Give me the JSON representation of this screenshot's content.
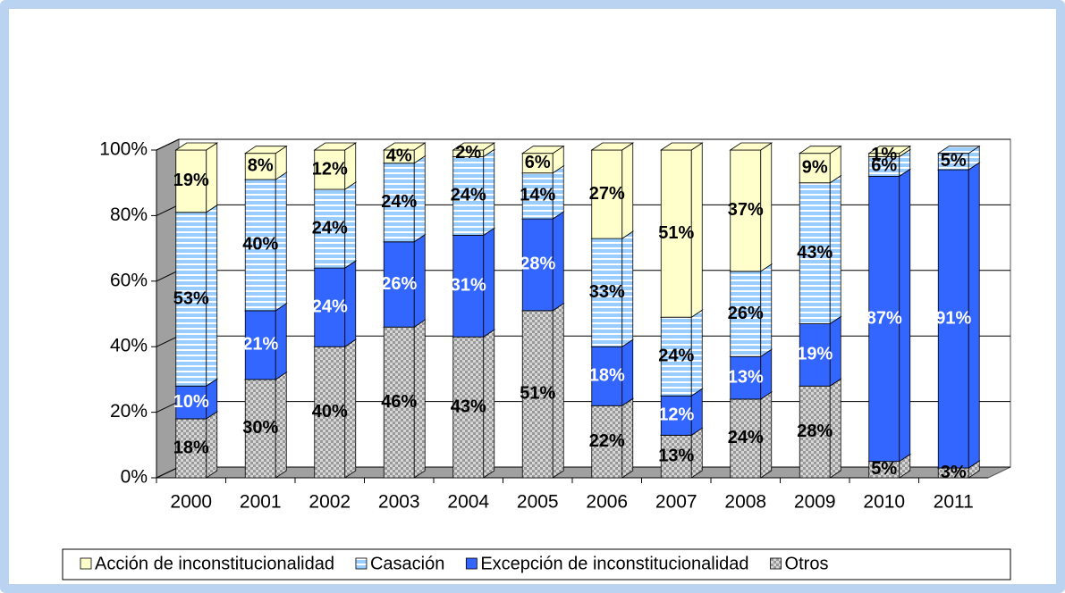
{
  "chart_data": {
    "type": "stacked-bar-3d",
    "categories": [
      "2000",
      "2001",
      "2002",
      "2003",
      "2004",
      "2005",
      "2006",
      "2007",
      "2008",
      "2009",
      "2010",
      "2011"
    ],
    "series": [
      {
        "name": "Acción de inconstitucionalidad",
        "color": "#ffffcc",
        "values": [
          19,
          8,
          12,
          4,
          2,
          6,
          27,
          51,
          37,
          9,
          1,
          null
        ],
        "value_labels": [
          "19%",
          "8%",
          "12%",
          "4%",
          "2%",
          "6%",
          "27%",
          "51%",
          "37%",
          "9%",
          "1%",
          null
        ]
      },
      {
        "name": "Casación",
        "color": "#99ccff",
        "values": [
          53,
          40,
          24,
          24,
          24,
          14,
          33,
          24,
          26,
          43,
          6,
          5
        ],
        "value_labels": [
          "53%",
          "40%",
          "24%",
          "24%",
          "24%",
          "14%",
          "33%",
          "24%",
          "26%",
          "43%",
          "6%",
          "5%"
        ]
      },
      {
        "name": "Excepción de inconstitucionalidad",
        "color": "#3366ff",
        "values": [
          10,
          21,
          24,
          26,
          31,
          28,
          18,
          12,
          13,
          19,
          87,
          91
        ],
        "value_labels": [
          "10%",
          "21%",
          "24%",
          "26%",
          "31%",
          "28%",
          "18%",
          "12%",
          "13%",
          "19%",
          "87%",
          "91%"
        ]
      },
      {
        "name": "Otros",
        "color": "#999999",
        "values": [
          18,
          30,
          40,
          46,
          43,
          51,
          22,
          13,
          24,
          28,
          5,
          3
        ],
        "value_labels": [
          "18%",
          "30%",
          "40%",
          "46%",
          "43%",
          "51%",
          "22%",
          "13%",
          "24%",
          "28%",
          "5%",
          "3%"
        ]
      }
    ],
    "ylim": [
      0,
      100
    ],
    "yticks": [
      {
        "value": 0,
        "label": "0%"
      },
      {
        "value": 20,
        "label": "20%"
      },
      {
        "value": 40,
        "label": "40%"
      },
      {
        "value": 60,
        "label": "60%"
      },
      {
        "value": 80,
        "label": "80%"
      },
      {
        "value": 100,
        "label": "100%"
      }
    ],
    "grid": true,
    "legend": "bottom"
  }
}
